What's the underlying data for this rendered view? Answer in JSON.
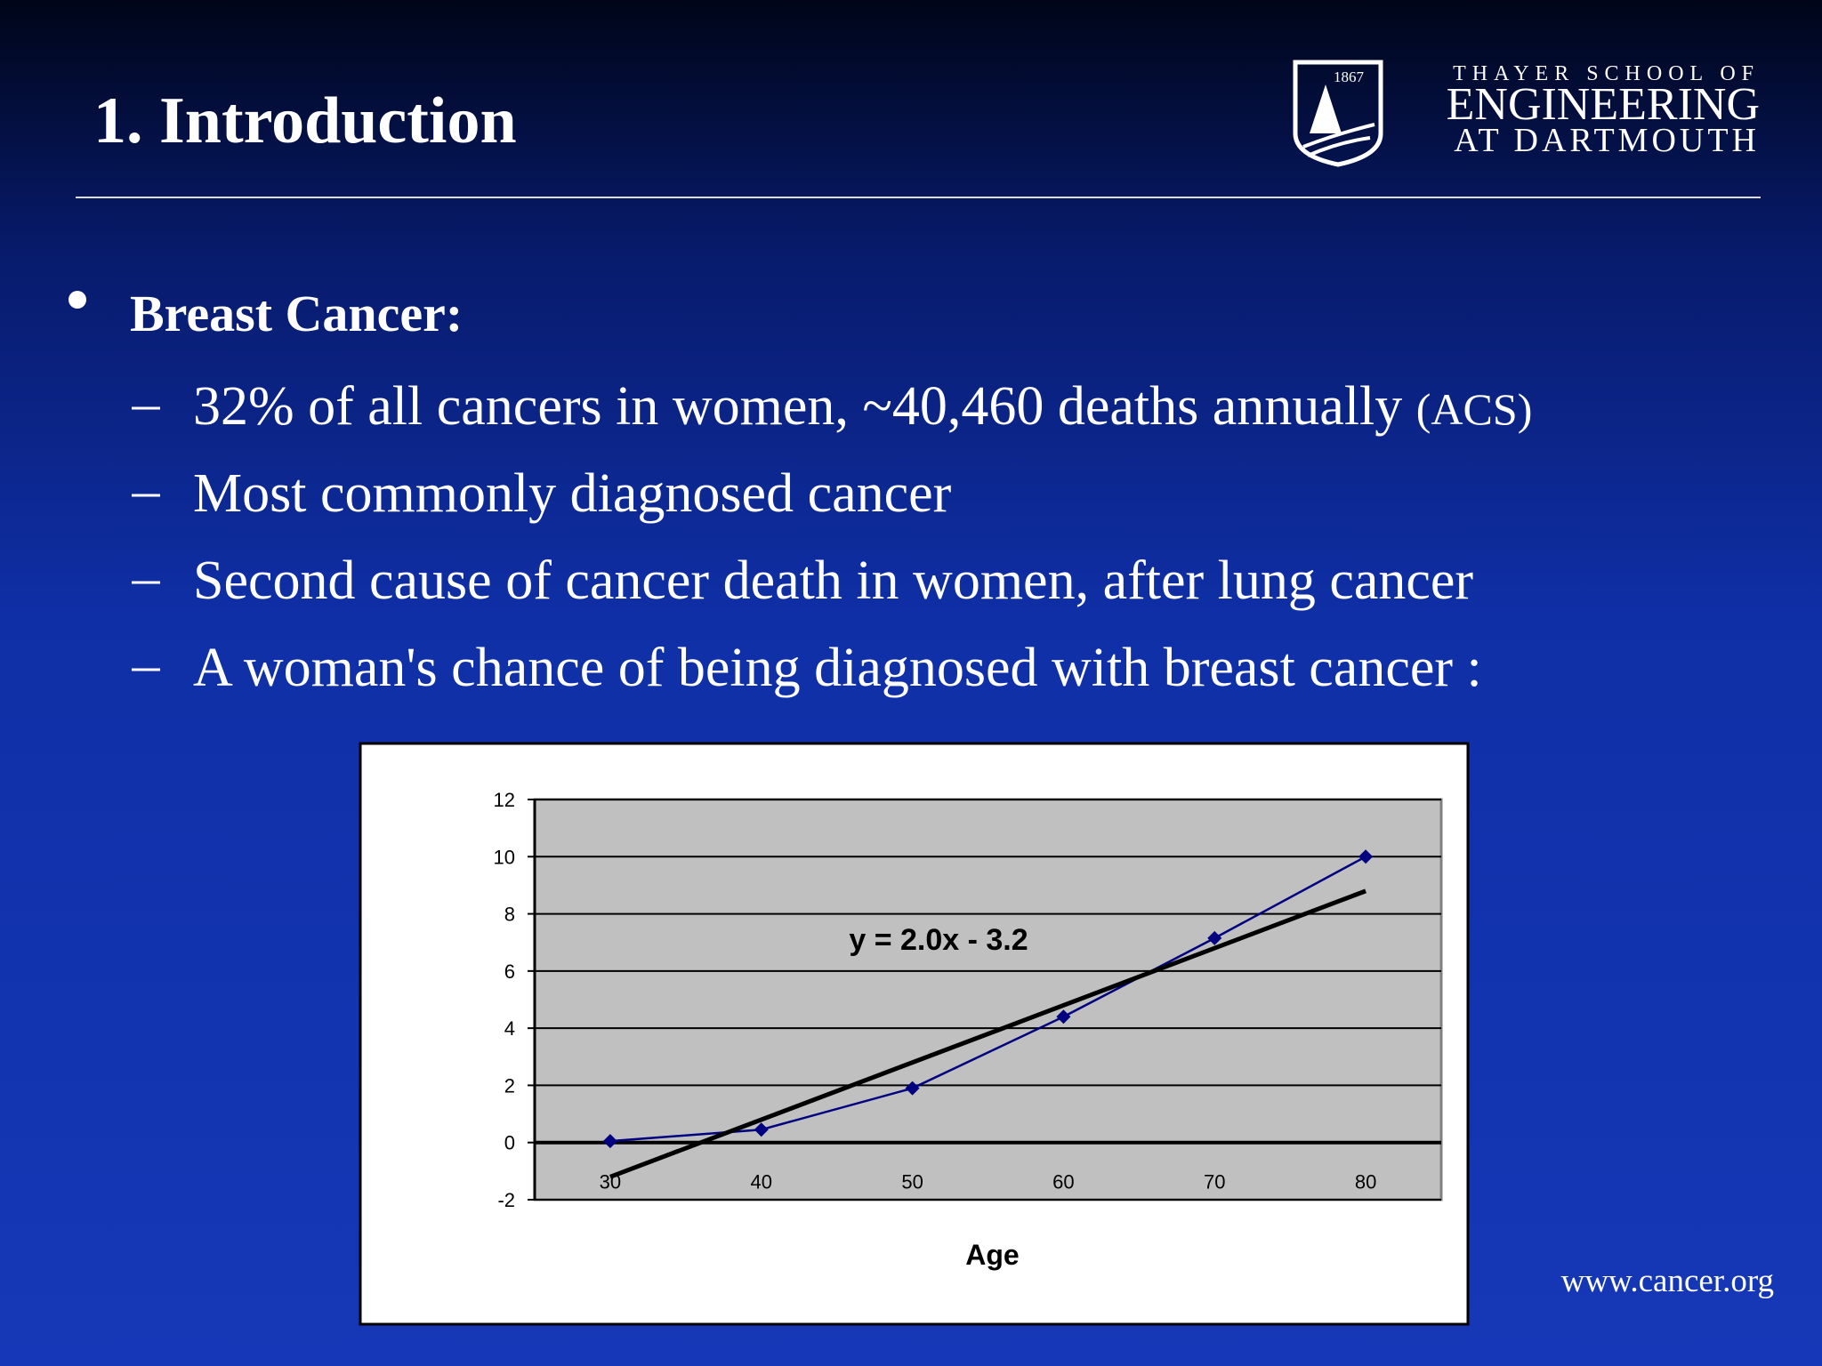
{
  "slide": {
    "title": "1. Introduction",
    "logo": {
      "year": "1867",
      "line1": "THAYER SCHOOL OF",
      "line2": "ENGINEERING",
      "line3": "AT DARTMOUTH"
    },
    "bullet": "Breast Cancer:",
    "subitems": [
      {
        "text": "32% of all cancers in women, ~40,460 deaths annually",
        "note": "(ACS)"
      },
      {
        "text": "Most commonly diagnosed cancer"
      },
      {
        "text": "Second cause of cancer death in women, after lung cancer"
      },
      {
        "text": "A woman's chance of being diagnosed with breast cancer :"
      }
    ],
    "source": "www.cancer.org"
  },
  "chart_data": {
    "type": "line",
    "x_label": "Age",
    "x": [
      30,
      40,
      50,
      60,
      70,
      80
    ],
    "values": [
      0.05,
      0.45,
      1.9,
      4.4,
      7.15,
      10.0
    ],
    "color": "#000080",
    "trendline": {
      "label": "y = 2.0x - 3.2",
      "x": [
        30,
        80
      ],
      "values": [
        -1.2,
        8.8
      ],
      "color": "#000000"
    },
    "xlim": [
      25,
      85
    ],
    "xticks": [
      30,
      40,
      50,
      60,
      70,
      80
    ],
    "ylim": [
      -2,
      12
    ],
    "yticks": [
      -2,
      0,
      2,
      4,
      6,
      8,
      10,
      12
    ],
    "grid": true
  }
}
